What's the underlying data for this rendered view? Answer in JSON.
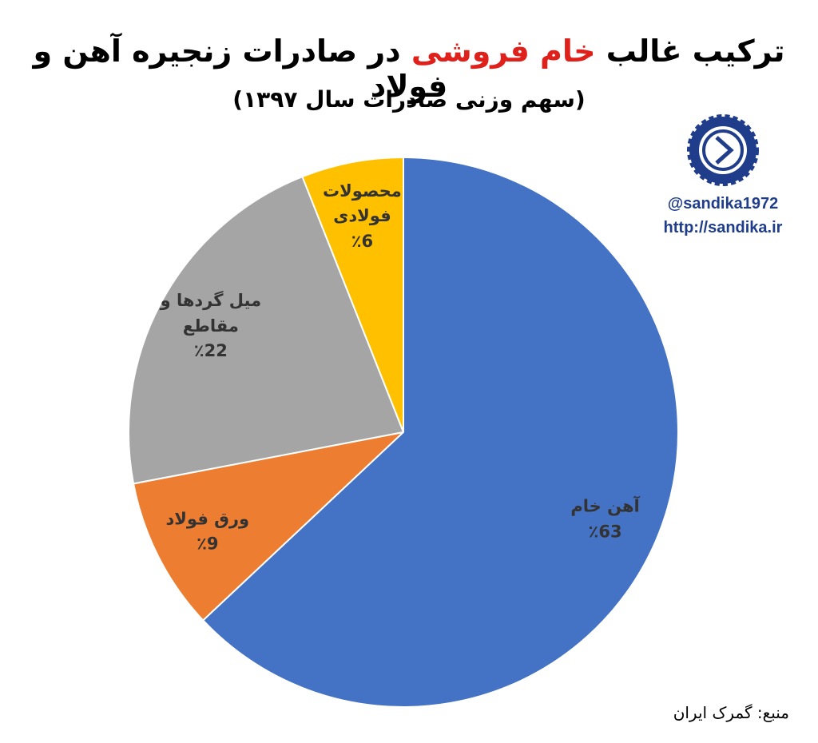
{
  "chart_data": {
    "type": "pie",
    "title": [
      "ترکیب غالب ",
      "خام فروشی",
      " در صادرات زنجیره آهن و فولاد"
    ],
    "title_colors": [
      "#000000",
      "#e0201b",
      "#000000"
    ],
    "subtitle": "(سهم وزنی صادرات سال ۱۳۹۷)",
    "categories": [
      "آهن خام",
      "ورق فولاد",
      "میل گردها و مقاطع",
      "محصولات فولادی"
    ],
    "values": [
      63,
      9,
      22,
      6
    ],
    "value_labels": [
      "٪63",
      "٪9",
      "٪22",
      "٪6"
    ],
    "colors": [
      "#4472c4",
      "#ed7d31",
      "#a5a5a5",
      "#ffc000"
    ],
    "watermark": [
      "@sandika1972",
      "http://sandika.ir"
    ],
    "source": "منبع: گمرک ایران"
  }
}
